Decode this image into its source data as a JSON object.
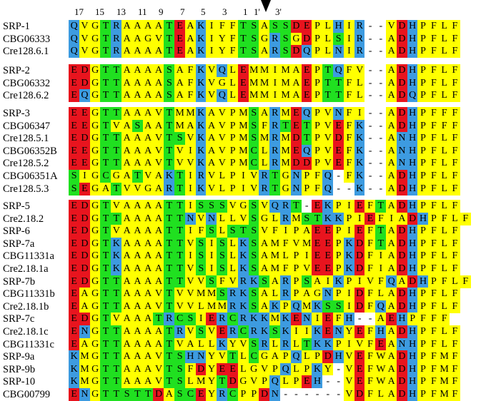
{
  "color_scheme": {
    "G": "#ffff00",
    "Y": "#ffff00",
    "R": "#3d9be0",
    "K": "#3d9be0",
    "H": "#3d9be0",
    "N": "#3d9be0",
    "Q": "#3d9be0",
    "E": "#e8141e",
    "D": "#e8141e",
    "T": "#20e020",
    "S": "#20e020",
    "C": "#20e020",
    "A": "#ffff00",
    "P": "#ffff00",
    "V": "#ffff00",
    "F": "#ffff00",
    "L": "#ffff00",
    "I": "#ffff00",
    "M": "#ffff00",
    "W": "#ffff00",
    "-": "#ffffff"
  },
  "position_labels": [
    "17",
    "15",
    "13",
    "11",
    "9",
    "7",
    "5",
    "3",
    "1",
    "1'",
    "3'"
  ],
  "blocks": [
    {
      "sequences": [
        {
          "name": "SRP-1",
          "seq": "QVGTRAAAATEAKIFFTSASSDEPLHIR--VDHPFLF"
        },
        {
          "name": "CBG06333",
          "seq": "QVGTRAAGVTEAKIYFTSGRSGDPLSIR--ADHPFLF"
        },
        {
          "name": "Cre128.6.1",
          "seq": "QVGTRAAAATEAKIYFTSARSDQPLNIR--ADHPFLF"
        }
      ]
    },
    {
      "sequences": [
        {
          "name": "SRP-2",
          "seq": "EDGTTAAAASAFKVQLEMMIMAEPTQFV--ADHPFLF"
        },
        {
          "name": "CBG06332",
          "seq": "EDGTTAAAASAFKVGLEMMIMAEPTTFL--ADHPFLF"
        },
        {
          "name": "Cre128.6.2",
          "seq": "EQGTTAAAASAFKVQLEMMIMAEPTTFL--ADQPFLF"
        }
      ]
    },
    {
      "sequences": [
        {
          "name": "SRP-3",
          "seq": "EEGTTAAAVTMMKAVPMSARMEQPVNFI--ADHPFFF"
        },
        {
          "name": "CBG06347",
          "seq": "EEGTVASAATMAKAVPMSFRTETPVEFK--ADHPFFF"
        },
        {
          "name": "Cre128.5.1",
          "seq": "EDGTTAAAVTSVKAVPMSMRMDTPVDFK--ANHPFLF"
        },
        {
          "name": "CBG06352B",
          "seq": "EEGTTAAAVTVIKAVPMCLRMEQPVEFK--ANHPFLF"
        },
        {
          "name": "Cre128.5.2",
          "seq": "EEGTTAAAVTVVKAVPMCLRMDDPVEFK--ANHPFLF"
        },
        {
          "name": "CBG06351A",
          "seq": "SIGCGATVAKTIRVLPIVRTGNPFQ-FK--ADHPFLF"
        },
        {
          "name": "Cre128.5.3",
          "seq": "SEGATVVGARTIKVLPIVRTGNPFQ--K--ADHPFLF"
        }
      ]
    },
    {
      "sequences": [
        {
          "name": "SRP-5",
          "seq": "EDGTVAAAATTISSSVGSVQRT-EKPIEFTADHPFLF"
        },
        {
          "name": "Cre2.18.2",
          "seq": "EDGTTAAAATTNVNLLVSGLRMSTKKPIEFIADHPFLF"
        },
        {
          "name": "SRP-6",
          "seq": "EDGTVAAAATTIFSLSTSVFIPAEEPIEFTADHPFLF"
        },
        {
          "name": "SRP-7a",
          "seq": "EDGTKAAAATTVSISLKSAMFVMEEPKDFTADHPFLF"
        },
        {
          "name": "CBG11331a",
          "seq": "EDGTKAAAATTISISLKSAMLPIEEPKDFIADHPFLF"
        },
        {
          "name": "Cre2.18.1a",
          "seq": "EDGTKAAAATTVSISLKSAMFPVEEPKDFIADHPFLF"
        },
        {
          "name": "SRP-7b",
          "seq": "EDGTTAAAATTVVSFVRKSARPSAIKPIVFQADHPFLF"
        },
        {
          "name": "CBG11331b",
          "seq": "EAGTTAAAVTVVMMSRKSALRPAGNPIDFLADHPFLF"
        },
        {
          "name": "Cre2.18.1b",
          "seq": "EAGTTAAAVTVVLMMRKSAKPQMKSSIDFQADHPFLF"
        },
        {
          "name": "SRP-7c",
          "seq": "EDGTVAAATRCSIERCRKKMKENIEFH--AEHPFFF"
        },
        {
          "name": "Cre2.18.1c",
          "seq": "ENGTTAAAATRVSVERCRKSKIIKENYEFHADHPFLF"
        },
        {
          "name": "CBG11331c",
          "seq": "EAGTTAAAATVALLKYVSRLRLTKKPIVFEANHPFLF"
        },
        {
          "name": "SRP-9a",
          "seq": "KMGTTAAAVTSHNYVTLCGAPQLPDHVEFWADHPFMF"
        },
        {
          "name": "SRP-9b",
          "seq": "KMGTTAAAVTSFDYEELGVPQLPKY-VEFWADHPFMF"
        },
        {
          "name": "SRP-10",
          "seq": "KMGTTAAAVTSLMYTDGVPQLPEH--VEFWADHPFMF"
        },
        {
          "name": "CBG00799",
          "seq": "ENGTTSTTDASCEYRCPPDN------VDFLADHPFMF"
        }
      ]
    }
  ]
}
